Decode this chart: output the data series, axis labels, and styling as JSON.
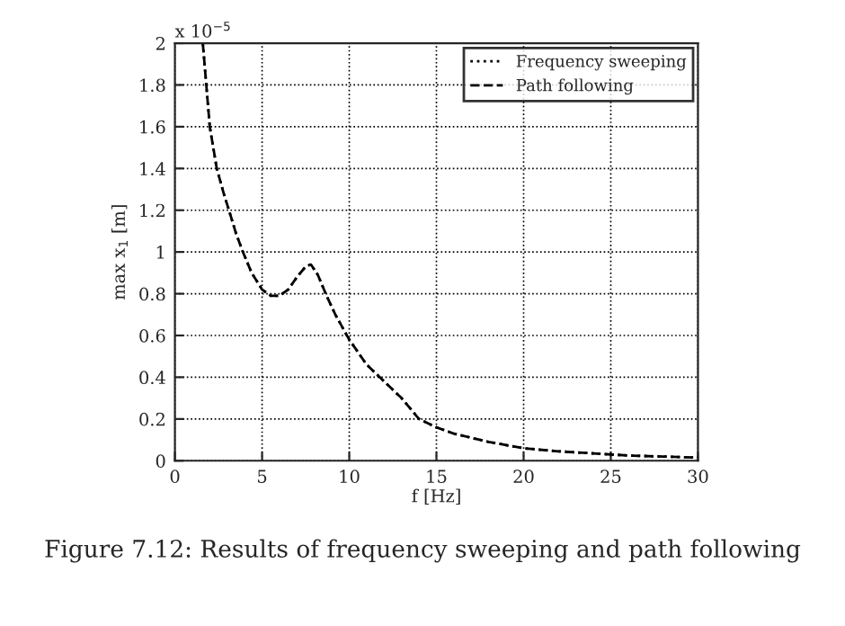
{
  "chart_data": {
    "type": "line",
    "xlabel": "f [Hz]",
    "ylabel": "max x$_{1}$ [m]",
    "annotations": [
      "x 10$^{−5}$",
      "Figure 7.12: Results of frequency sweeping and path following"
    ],
    "x": [
      1.6,
      1.8,
      2,
      2.4,
      2.8,
      3.1,
      3.5,
      3.9,
      4.4,
      5,
      5.5,
      6,
      6.5,
      7,
      7.5,
      7.8,
      8.2,
      8.7,
      9.2,
      10,
      11,
      12,
      13,
      14,
      15,
      16,
      17,
      18,
      20,
      22,
      24,
      26,
      28,
      30
    ],
    "series": [
      {
        "name": "Frequency sweeping",
        "color": "#000000",
        "line_style": "dotted",
        "values": [
          2.0,
          1.8,
          1.6,
          1.4,
          1.28,
          1.2,
          1.09,
          1.0,
          0.9,
          0.82,
          0.79,
          0.79,
          0.82,
          0.88,
          0.93,
          0.94,
          0.89,
          0.79,
          0.7,
          0.58,
          0.46,
          0.38,
          0.3,
          0.2,
          0.16,
          0.13,
          0.11,
          0.09,
          0.06,
          0.045,
          0.035,
          0.025,
          0.02,
          0.015
        ]
      },
      {
        "name": "Path following",
        "color": "#000000",
        "line_style": "dashed",
        "values": [
          2.0,
          1.8,
          1.6,
          1.4,
          1.28,
          1.2,
          1.09,
          1.0,
          0.9,
          0.82,
          0.79,
          0.79,
          0.82,
          0.88,
          0.93,
          0.94,
          0.89,
          0.79,
          0.7,
          0.58,
          0.46,
          0.38,
          0.3,
          0.2,
          0.16,
          0.13,
          0.11,
          0.09,
          0.06,
          0.045,
          0.035,
          0.025,
          0.02,
          0.015
        ]
      }
    ],
    "xlim": [
      0,
      30
    ],
    "xticks": [
      0,
      5,
      10,
      15,
      20,
      25,
      30
    ],
    "ylim": [
      0,
      2
    ],
    "yticks": [
      0,
      0.2,
      0.4,
      0.6,
      0.8,
      1,
      1.2,
      1.4,
      1.6,
      1.8,
      2
    ],
    "grid": true,
    "legend": "top right"
  }
}
